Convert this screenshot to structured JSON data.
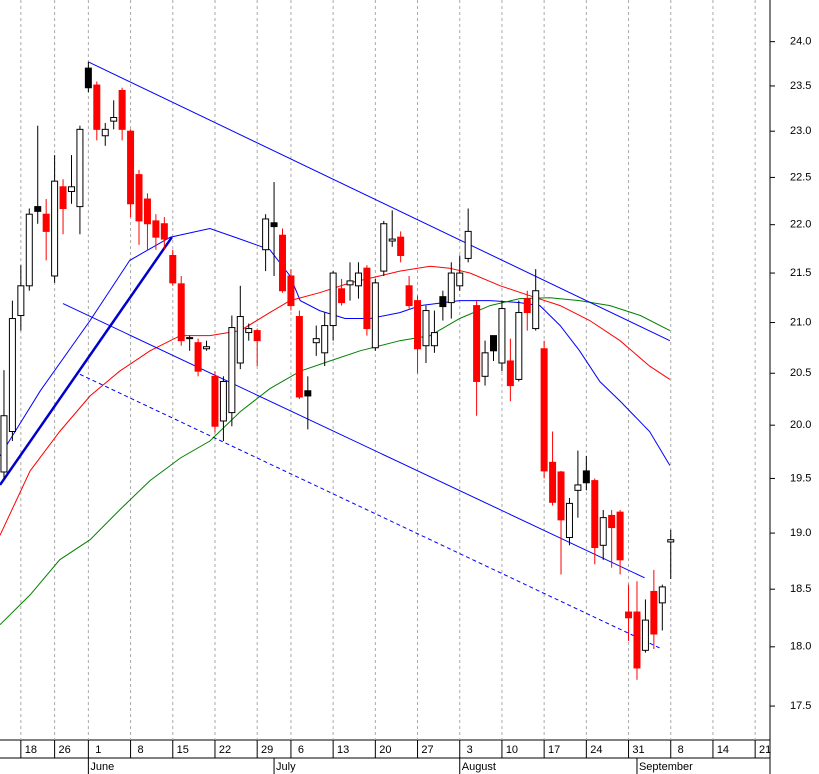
{
  "chart_data": {
    "type": "candlestick",
    "x": [
      0,
      1,
      2,
      3,
      4,
      5,
      6,
      7,
      8,
      9,
      10,
      11,
      12,
      13,
      14,
      15,
      16,
      17,
      18,
      19,
      20,
      21,
      22,
      23,
      24,
      25,
      26,
      27,
      28,
      29,
      30,
      31,
      32,
      33,
      34,
      35,
      36,
      37,
      38,
      39,
      40,
      41,
      42,
      43,
      44,
      45,
      46,
      47,
      48,
      49,
      50,
      51,
      52,
      53,
      54,
      55,
      56,
      57,
      58,
      59,
      60,
      61,
      62,
      63,
      64,
      65,
      66,
      67,
      68,
      69,
      70,
      71,
      72,
      73,
      74,
      75,
      76,
      77,
      78,
      79
    ],
    "open": [
      19.56,
      19.94,
      21.07,
      21.37,
      22.19,
      22.11,
      21.47,
      22.4,
      22.35,
      22.19,
      23.7,
      23.51,
      22.95,
      23.11,
      23.45,
      23.0,
      22.53,
      22.27,
      22.04,
      22.01,
      21.68,
      21.39,
      20.84,
      20.8,
      20.74,
      20.47,
      20.04,
      20.12,
      20.6,
      20.9,
      20.92,
      21.74,
      22.02,
      21.89,
      21.47,
      21.06,
      20.33,
      20.8,
      20.7,
      20.97,
      21.34,
      21.38,
      21.37,
      21.55,
      20.75,
      21.52,
      21.83,
      21.87,
      21.37,
      21.22,
      20.77,
      20.77,
      21.26,
      21.2,
      21.37,
      21.65,
      21.17,
      20.47,
      20.87,
      20.6,
      20.62,
      20.44,
      21.24,
      20.94,
      20.74,
      19.65,
      19.56,
      18.96,
      19.39,
      19.57,
      19.48,
      18.89,
      19.16,
      19.19,
      18.3,
      18.3,
      17.97,
      18.48,
      18.38,
      18.92
    ],
    "high": [
      20.53,
      21.22,
      21.58,
      22.17,
      23.06,
      22.27,
      22.74,
      22.48,
      22.74,
      23.06,
      23.77,
      23.55,
      23.09,
      23.34,
      23.48,
      23.02,
      22.58,
      22.33,
      22.11,
      22.08,
      21.74,
      21.47,
      20.87,
      20.84,
      20.82,
      20.52,
      20.47,
      21.07,
      21.37,
      20.99,
      20.94,
      22.11,
      22.45,
      21.96,
      21.54,
      21.12,
      20.47,
      20.97,
      21.1,
      21.52,
      21.44,
      21.61,
      21.61,
      21.58,
      21.44,
      22.04,
      22.15,
      21.93,
      21.47,
      21.27,
      21.17,
      21.12,
      21.32,
      21.61,
      21.68,
      22.17,
      21.22,
      20.82,
      20.87,
      21.22,
      20.84,
      21.22,
      21.32,
      21.54,
      20.82,
      19.94,
      19.57,
      19.32,
      19.76,
      19.71,
      19.5,
      19.21,
      19.21,
      19.21,
      18.54,
      18.57,
      18.41,
      18.67,
      18.54,
      19.03
    ],
    "low": [
      19.5,
      19.85,
      20.92,
      21.32,
      22.01,
      21.63,
      21.4,
      21.9,
      22.22,
      21.9,
      23.43,
      22.9,
      22.84,
      23.02,
      22.9,
      22.08,
      21.79,
      21.74,
      21.74,
      21.74,
      21.37,
      20.77,
      20.72,
      20.47,
      20.72,
      19.93,
      19.85,
      19.99,
      20.54,
      20.82,
      20.57,
      21.52,
      21.47,
      21.3,
      21.12,
      20.25,
      19.96,
      20.67,
      20.57,
      20.82,
      21.17,
      21.22,
      21.24,
      20.87,
      20.72,
      21.47,
      21.77,
      21.61,
      21.14,
      20.5,
      20.6,
      20.7,
      21.02,
      21.04,
      21.32,
      21.61,
      20.09,
      20.38,
      20.62,
      20.52,
      20.23,
      20.42,
      20.92,
      20.92,
      19.5,
      19.25,
      18.63,
      18.89,
      19.14,
      19.39,
      18.72,
      18.76,
      18.69,
      18.63,
      18.05,
      17.72,
      17.95,
      17.98,
      18.14,
      18.59
    ],
    "close": [
      20.09,
      21.04,
      21.37,
      22.11,
      22.14,
      21.93,
      22.46,
      22.17,
      22.4,
      23.02,
      23.48,
      23.02,
      23.02,
      23.15,
      23.02,
      22.22,
      22.04,
      22.01,
      21.87,
      21.85,
      21.4,
      20.82,
      20.85,
      20.52,
      20.76,
      19.99,
      20.42,
      20.95,
      21.06,
      20.94,
      20.82,
      22.06,
      21.98,
      21.32,
      21.17,
      20.27,
      20.28,
      20.84,
      20.97,
      21.5,
      21.2,
      21.42,
      21.5,
      20.94,
      21.4,
      22.01,
      21.85,
      21.68,
      21.17,
      20.74,
      21.12,
      20.9,
      21.16,
      21.5,
      21.5,
      21.93,
      20.42,
      20.7,
      20.72,
      21.14,
      20.38,
      21.1,
      21.1,
      21.32,
      19.57,
      19.28,
      19.12,
      19.27,
      19.44,
      19.46,
      18.87,
      19.14,
      19.05,
      18.76,
      18.25,
      17.82,
      18.23,
      18.11,
      18.52,
      18.94
    ],
    "fills": [
      "#ffffff",
      "#ffffff",
      "#ffffff",
      "#ffffff",
      "#000000",
      "#ff0000",
      "#ffffff",
      "#ff0000",
      "#ffffff",
      "#ffffff",
      "#000000",
      "#ff0000",
      "#ffffff",
      "#ffffff",
      "#ff0000",
      "#ff0000",
      "#ff0000",
      "#ff0000",
      "#ff0000",
      "#ff0000",
      "#ff0000",
      "#ff0000",
      "#ffffff",
      "#ff0000",
      "#ffffff",
      "#ff0000",
      "#ffffff",
      "#ffffff",
      "#ffffff",
      "#ffffff",
      "#ff0000",
      "#ffffff",
      "#000000",
      "#ff0000",
      "#ff0000",
      "#ff0000",
      "#000000",
      "#ffffff",
      "#ffffff",
      "#ffffff",
      "#ff0000",
      "#ffffff",
      "#ffffff",
      "#ff0000",
      "#ffffff",
      "#ffffff",
      "#ffffff",
      "#ff0000",
      "#ff0000",
      "#ff0000",
      "#ffffff",
      "#ffffff",
      "#000000",
      "#ffffff",
      "#ffffff",
      "#ffffff",
      "#ff0000",
      "#ffffff",
      "#000000",
      "#ffffff",
      "#ff0000",
      "#ffffff",
      "#ff0000",
      "#ffffff",
      "#ff0000",
      "#ff0000",
      "#ff0000",
      "#ffffff",
      "#ffffff",
      "#000000",
      "#ff0000",
      "#ffffff",
      "#ff0000",
      "#ff0000",
      "#ff0000",
      "#ff0000",
      "#ffffff",
      "#ff0000",
      "#ffffff",
      "#ffffff"
    ],
    "series": [
      {
        "color": "#0000ff",
        "x": [
          -0.47,
          4.3,
          10.2,
          14.9,
          19.7,
          24.4,
          28.0,
          31.5,
          33.9,
          35.1,
          37.4,
          40.4,
          43.4,
          46.9,
          49.3,
          54.0,
          57.6,
          61.1,
          63.5,
          65.9,
          68.2,
          70.6,
          73.0,
          76.5,
          78.9
        ],
        "values": [
          19.71,
          20.33,
          21.02,
          21.63,
          21.87,
          21.96,
          21.85,
          21.74,
          21.47,
          21.22,
          21.12,
          21.04,
          21.04,
          21.1,
          21.17,
          21.22,
          21.22,
          21.2,
          21.17,
          20.97,
          20.72,
          20.42,
          20.23,
          19.94,
          19.62
        ]
      },
      {
        "color": "#ff0000",
        "x": [
          -0.47,
          3.1,
          6.6,
          10.2,
          13.7,
          17.3,
          20.9,
          24.4,
          28.0,
          31.5,
          33.9,
          37.4,
          41.0,
          44.5,
          46.9,
          50.5,
          52.8,
          55.2,
          58.8,
          62.3,
          65.9,
          69.4,
          73.0,
          76.5,
          78.9
        ],
        "values": [
          18.98,
          19.57,
          19.94,
          20.28,
          20.52,
          20.72,
          20.87,
          20.87,
          20.92,
          21.1,
          21.22,
          21.3,
          21.4,
          21.47,
          21.52,
          21.57,
          21.55,
          21.5,
          21.37,
          21.27,
          21.17,
          21.02,
          20.82,
          20.57,
          20.44
        ]
      },
      {
        "color": "#008000",
        "x": [
          -0.47,
          3.1,
          6.6,
          10.2,
          13.7,
          17.3,
          20.9,
          24.4,
          28.0,
          31.5,
          35.1,
          38.6,
          42.2,
          46.9,
          50.5,
          54.0,
          57.6,
          61.1,
          64.7,
          68.2,
          71.8,
          75.4,
          78.9
        ],
        "values": [
          18.19,
          18.45,
          18.76,
          18.94,
          19.21,
          19.48,
          19.69,
          19.85,
          20.13,
          20.35,
          20.52,
          20.62,
          20.72,
          20.82,
          20.87,
          21.04,
          21.17,
          21.24,
          21.25,
          21.22,
          21.17,
          21.07,
          20.92
        ]
      }
    ],
    "trendlines": [
      {
        "color": "#0000ff",
        "style": "solid",
        "width": 1,
        "x": [
          10,
          78.9
        ],
        "values": [
          23.77,
          20.82
        ]
      },
      {
        "color": "#0000ff",
        "style": "solid",
        "width": 1,
        "x": [
          7,
          75.9
        ],
        "values": [
          21.19,
          18.6
        ]
      },
      {
        "color": "#0000ff",
        "style": "dashed",
        "width": 1,
        "x": [
          9,
          78
        ],
        "values": [
          20.49,
          17.98
        ]
      },
      {
        "color": "#0000cc",
        "style": "solid",
        "width": 2.5,
        "x": [
          -0.47,
          19.9
        ],
        "values": [
          19.44,
          21.87
        ]
      }
    ],
    "xlim": [
      -0.47,
      90.76
    ],
    "xticks": [
      {
        "value": 2,
        "label": "18"
      },
      {
        "value": 6,
        "label": "26"
      },
      {
        "value": 10,
        "label": "1"
      },
      {
        "value": 15,
        "label": "8"
      },
      {
        "value": 20,
        "label": "15"
      },
      {
        "value": 25,
        "label": "22"
      },
      {
        "value": 30,
        "label": "29"
      },
      {
        "value": 34,
        "label": "6"
      },
      {
        "value": 39,
        "label": "13"
      },
      {
        "value": 44,
        "label": "20"
      },
      {
        "value": 49,
        "label": "27"
      },
      {
        "value": 54,
        "label": "3"
      },
      {
        "value": 59,
        "label": "10"
      },
      {
        "value": 64,
        "label": "17"
      },
      {
        "value": 69,
        "label": "24"
      },
      {
        "value": 74,
        "label": "31"
      },
      {
        "value": 79,
        "label": "8"
      },
      {
        "value": 84,
        "label": "14"
      },
      {
        "value": 89,
        "label": "21"
      }
    ],
    "months": [
      {
        "text": "June",
        "x": 10
      },
      {
        "text": "July",
        "x": 32
      },
      {
        "text": "August",
        "x": 54
      },
      {
        "text": "September",
        "x": 75
      }
    ],
    "ylim": [
      17.22,
      24.48
    ],
    "log_scale": true,
    "yticks": [
      {
        "value": 17.5,
        "label": "17.5"
      },
      {
        "value": 18,
        "label": "18.0"
      },
      {
        "value": 18.5,
        "label": "18.5"
      },
      {
        "value": 19,
        "label": "19.0"
      },
      {
        "value": 19.5,
        "label": "19.5"
      },
      {
        "value": 20,
        "label": "20.0"
      },
      {
        "value": 20.5,
        "label": "20.5"
      },
      {
        "value": 21,
        "label": "21.0"
      },
      {
        "value": 21.5,
        "label": "21.5"
      },
      {
        "value": 22,
        "label": "22.0"
      },
      {
        "value": 22.5,
        "label": "22.5"
      },
      {
        "value": 23,
        "label": "23.0"
      },
      {
        "value": 23.5,
        "label": "23.5"
      },
      {
        "value": 24,
        "label": "24.0"
      }
    ],
    "grid": "x"
  }
}
